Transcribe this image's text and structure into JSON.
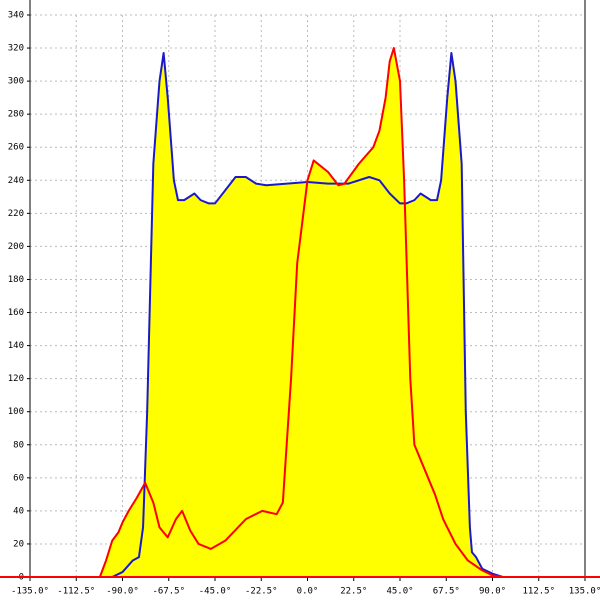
{
  "chart_data": {
    "type": "area",
    "xlim": [
      -135,
      135
    ],
    "xticks": [
      {
        "value": -135,
        "label": "-135.0°"
      },
      {
        "value": -112.5,
        "label": "-112.5°"
      },
      {
        "value": -90,
        "label": "-90.0°"
      },
      {
        "value": -67.5,
        "label": "-67.5°"
      },
      {
        "value": -45,
        "label": "-45.0°"
      },
      {
        "value": -22.5,
        "label": "-22.5°"
      },
      {
        "value": 0,
        "label": "0.0°"
      },
      {
        "value": 22.5,
        "label": "22.5°"
      },
      {
        "value": 45,
        "label": "45.0°"
      },
      {
        "value": 67.5,
        "label": "67.5°"
      },
      {
        "value": 90,
        "label": "90.0°"
      },
      {
        "value": 112.5,
        "label": "112.5°"
      },
      {
        "value": 135,
        "label": "135.0°"
      }
    ],
    "ylim": [
      0,
      340
    ],
    "yticks": [
      0,
      20,
      40,
      60,
      80,
      100,
      120,
      140,
      160,
      180,
      200,
      220,
      240,
      260,
      280,
      300,
      320,
      340
    ],
    "grid": true,
    "fill_color": "#ffff00",
    "series": [
      {
        "color": "#1a1acc",
        "x": [
          -95,
          -90,
          -85,
          -82,
          -80,
          -78,
          -77,
          -75,
          -72,
          -70,
          -68,
          -65,
          -63,
          -60,
          -55,
          -52,
          -48,
          -45,
          -40,
          -35,
          -30,
          -25,
          -20,
          -10,
          0,
          10,
          20,
          30,
          35,
          40,
          45,
          48,
          52,
          55,
          60,
          63,
          65,
          68,
          70,
          72,
          75,
          77,
          79,
          80,
          82,
          85,
          90,
          95
        ],
        "values": [
          0,
          3,
          10,
          12,
          30,
          100,
          150,
          250,
          300,
          317,
          290,
          240,
          228,
          228,
          232,
          228,
          226,
          226,
          234,
          242,
          242,
          238,
          237,
          238,
          239,
          238,
          238,
          242,
          240,
          232,
          226,
          226,
          228,
          232,
          228,
          228,
          240,
          290,
          317,
          300,
          250,
          100,
          30,
          15,
          12,
          5,
          2,
          0
        ]
      },
      {
        "color": "#ff0000",
        "x": [
          -101,
          -98,
          -95,
          -92,
          -90,
          -87,
          -83,
          -79,
          -75,
          -72,
          -68,
          -64,
          -61,
          -57,
          -53,
          -47,
          -40,
          -30,
          -22,
          -15,
          -12,
          -8,
          -5,
          0,
          3,
          10,
          15,
          18,
          25,
          32,
          35,
          38,
          40,
          42,
          45,
          47,
          50,
          52,
          57,
          62,
          66,
          72,
          78,
          85,
          90,
          95
        ],
        "values": [
          0,
          10,
          22,
          27,
          33,
          40,
          48,
          57,
          45,
          30,
          24,
          35,
          40,
          28,
          20,
          17,
          22,
          35,
          40,
          38,
          45,
          120,
          190,
          240,
          252,
          245,
          237,
          238,
          250,
          260,
          270,
          290,
          312,
          320,
          300,
          240,
          120,
          80,
          65,
          50,
          35,
          20,
          10,
          4,
          1,
          0
        ]
      }
    ]
  }
}
